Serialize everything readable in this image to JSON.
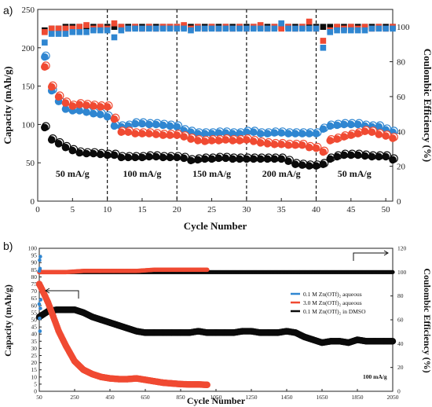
{
  "colors": {
    "blue": "#2f86d1",
    "red": "#f04a32",
    "black": "#0b0b0b",
    "white": "#ffffff"
  },
  "chart_data": [
    {
      "panel_label": "a)",
      "type": "scatter",
      "xlabel": "Cycle Number",
      "ylabel": "Capacity (mAh/g)",
      "y2label": "Coulombic Efficiency (%)",
      "xlim": [
        0,
        51
      ],
      "ylim": [
        0,
        250
      ],
      "y2lim": [
        0,
        110
      ],
      "xticks": [
        "0",
        "5",
        "10",
        "15",
        "20",
        "25",
        "30",
        "35",
        "40",
        "45",
        "50"
      ],
      "yticks": [
        "0",
        "50",
        "100",
        "150",
        "200",
        "250"
      ],
      "y2ticks": [
        "0",
        "20",
        "40",
        "60",
        "80",
        "100"
      ],
      "dividers": [
        10,
        20,
        30,
        40
      ],
      "segment_labels": [
        {
          "text": "50 mA/g",
          "x": 5,
          "y": 32
        },
        {
          "text": "100 mA/g",
          "x": 15,
          "y": 32
        },
        {
          "text": "150 mA/g",
          "x": 25,
          "y": 32
        },
        {
          "text": "200 mA/g",
          "x": 35,
          "y": 32
        },
        {
          "text": "50 mA/g",
          "x": 45.5,
          "y": 32
        }
      ],
      "series": [
        {
          "values": [
            188,
            144,
            130,
            120,
            118,
            118,
            116,
            114,
            113,
            110,
            98,
            97,
            98,
            101,
            101,
            100,
            100,
            99,
            98,
            97,
            92,
            90,
            88,
            88,
            88,
            89,
            89,
            88,
            88,
            90,
            90,
            88,
            88,
            89,
            89,
            88,
            88,
            88,
            88,
            88,
            94,
            98,
            99,
            100,
            100,
            100,
            98,
            97,
            97,
            93,
            90
          ]
        },
        {
          "values": [
            175,
            149,
            136,
            128,
            124,
            126,
            125,
            124,
            123,
            123,
            107,
            90,
            90,
            88,
            88,
            88,
            87,
            86,
            86,
            86,
            84,
            81,
            79,
            78,
            79,
            79,
            80,
            79,
            79,
            80,
            78,
            76,
            75,
            74,
            74,
            73,
            73,
            73,
            70,
            69,
            64,
            79,
            81,
            84,
            86,
            88,
            91,
            90,
            87,
            85,
            82
          ]
        },
        {
          "values": [
            96,
            80,
            75,
            70,
            66,
            63,
            62,
            62,
            61,
            60,
            60,
            57,
            57,
            57,
            57,
            58,
            58,
            57,
            57,
            57,
            56,
            53,
            54,
            55,
            55,
            56,
            56,
            55,
            55,
            55,
            55,
            55,
            55,
            55,
            55,
            52,
            48,
            47,
            46,
            46,
            48,
            55,
            58,
            60,
            60,
            60,
            59,
            58,
            58,
            58,
            54
          ]
        },
        {
          "values": [
            98,
            99,
            99,
            100,
            100,
            100,
            100,
            100,
            100,
            100,
            100,
            100,
            100,
            100,
            100,
            100,
            100,
            100,
            100,
            100,
            100,
            100,
            100,
            100,
            100,
            100,
            100,
            100,
            100,
            100,
            100,
            100,
            100,
            100,
            100,
            100,
            100,
            100,
            100,
            100,
            100,
            100,
            100,
            100,
            100,
            100,
            100,
            100,
            100,
            100,
            100
          ]
        },
        {
          "values": [
            97,
            99,
            99,
            99,
            99,
            100,
            101,
            99,
            100,
            99,
            102,
            100,
            99,
            100,
            99,
            100,
            99,
            100,
            100,
            100,
            101,
            99,
            100,
            99,
            100,
            99,
            100,
            99,
            100,
            99,
            100,
            101,
            99,
            100,
            99,
            100,
            99,
            100,
            103,
            99,
            92,
            98,
            100,
            99,
            100,
            99,
            100,
            99,
            100,
            99,
            100
          ]
        },
        {
          "values": [
            91,
            96,
            96,
            96,
            97,
            97,
            97,
            98,
            98,
            98,
            94,
            98,
            99,
            99,
            99,
            99,
            99,
            99,
            99,
            99,
            99,
            98,
            99,
            99,
            99,
            99,
            99,
            99,
            99,
            99,
            99,
            99,
            99,
            99,
            102,
            99,
            99,
            99,
            99,
            99,
            88,
            97,
            98,
            98,
            98,
            98,
            98,
            99,
            99,
            99,
            99
          ]
        }
      ]
    },
    {
      "panel_label": "b)",
      "type": "scatter",
      "xlabel": "Cycle Number",
      "ylabel": "Capacity (mAh/g)",
      "y2label": "Coulombic Efficiency (%)",
      "xlim": [
        50,
        2050
      ],
      "ylim": [
        0,
        100
      ],
      "y2lim": [
        0,
        120
      ],
      "xticks": [
        "50",
        "250",
        "450",
        "650",
        "850",
        "1050",
        "1250",
        "1450",
        "1650",
        "1850",
        "2050"
      ],
      "yticks": [
        "0",
        "5",
        "10",
        "15",
        "20",
        "25",
        "30",
        "35",
        "40",
        "45",
        "50",
        "55",
        "60",
        "65",
        "70",
        "75",
        "80",
        "85",
        "90",
        "95",
        "100"
      ],
      "y2ticks": [
        "0",
        "20",
        "40",
        "60",
        "80",
        "100",
        "120"
      ],
      "legend": [
        "0.1 M Zn(OTf)₂ aqueous",
        "3.0 M Zn(OTf)₂ aqueous",
        "0.1 M Zn(OTf)₂ in DMSO"
      ],
      "annotation": "100 mA/g",
      "series": [
        {
          "x": [
            50,
            52,
            54,
            56,
            58
          ],
          "y": [
            61,
            51,
            42,
            58,
            64
          ]
        },
        {
          "x": [
            50,
            70,
            100,
            130,
            160,
            200,
            250,
            300,
            350,
            400,
            450,
            500,
            550,
            600,
            650,
            700,
            750,
            800,
            850,
            900,
            950,
            1000
          ],
          "y": [
            75,
            70,
            62,
            52,
            42,
            32,
            21,
            15,
            12,
            10,
            9,
            8.5,
            8.5,
            9,
            8,
            7,
            6,
            5.5,
            5,
            4.8,
            4.8,
            4.5
          ]
        },
        {
          "x": [
            50,
            100,
            150,
            200,
            250,
            300,
            350,
            400,
            450,
            500,
            550,
            600,
            650,
            700,
            750,
            800,
            850,
            900,
            950,
            1000,
            1050,
            1100,
            1150,
            1200,
            1250,
            1300,
            1350,
            1400,
            1450,
            1500,
            1550,
            1600,
            1650,
            1700,
            1750,
            1800,
            1850,
            1900,
            1950,
            2000,
            2050
          ],
          "y": [
            52,
            56,
            57,
            57,
            57,
            55,
            52,
            50,
            48,
            46,
            44,
            42,
            41,
            41,
            41,
            41,
            41,
            41,
            42,
            41,
            41,
            41,
            41,
            42,
            42,
            41,
            41,
            41,
            42,
            41,
            38,
            36,
            34,
            35,
            35,
            34,
            36,
            35,
            35,
            35,
            35
          ]
        },
        {
          "x": [
            50,
            52,
            54,
            56
          ],
          "y2": [
            101,
            110,
            103,
            113
          ]
        },
        {
          "x": [
            50,
            100,
            200,
            300,
            400,
            500,
            600,
            700,
            800,
            900,
            1000
          ],
          "y2": [
            100,
            100,
            100,
            101,
            101,
            101,
            101,
            102,
            102,
            102,
            102
          ]
        },
        {
          "x": [
            50,
            250,
            450,
            650,
            850,
            1050,
            1250,
            1450,
            1650,
            1850,
            2050
          ],
          "y2": [
            100,
            100,
            100,
            100,
            100,
            100,
            100,
            100,
            100,
            100,
            100
          ]
        }
      ]
    }
  ]
}
